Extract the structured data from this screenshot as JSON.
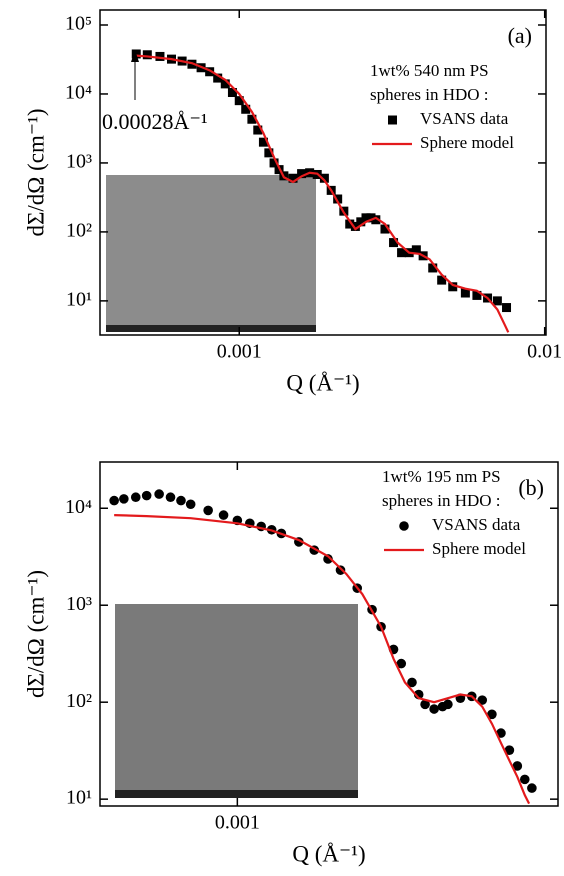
{
  "chart_data": [
    {
      "type": "line",
      "panel_label": "(a)",
      "y_label": "dΣ/dΩ (cm⁻¹)",
      "x_label": "Q (Å⁻¹)",
      "notes": [
        "1wt% 540 nm PS",
        "spheres in HDO :"
      ],
      "arrow_label": "0.00028Å⁻¹",
      "log_x": true,
      "log_y": true,
      "legend": "upper right",
      "xlim": [
        0.00035,
        0.0101
      ],
      "xticks": [
        0.001,
        0.01
      ],
      "ylim": [
        3.2,
        165000
      ],
      "yticks": [
        {
          "value": 10,
          "label": "10¹"
        },
        {
          "value": 100,
          "label": "10²"
        },
        {
          "value": 1000,
          "label": "10³"
        },
        {
          "value": 10000,
          "label": "10⁴"
        },
        {
          "value": 100000,
          "label": "10⁵"
        }
      ],
      "series": [
        {
          "name": "VSANS data",
          "color": "#000000",
          "marker": "square",
          "x": [
            0.00046,
            0.0005,
            0.00055,
            0.0006,
            0.00065,
            0.0007,
            0.00075,
            0.0008,
            0.00085,
            0.0009,
            0.00095,
            0.001,
            0.00105,
            0.0011,
            0.00115,
            0.0012,
            0.00125,
            0.0013,
            0.00135,
            0.0014,
            0.0015,
            0.0016,
            0.0017,
            0.0018,
            0.0019,
            0.002,
            0.0021,
            0.0022,
            0.0023,
            0.0024,
            0.0025,
            0.0026,
            0.0027,
            0.0028,
            0.003,
            0.0032,
            0.0034,
            0.0036,
            0.0038,
            0.004,
            0.0043,
            0.0046,
            0.005,
            0.0055,
            0.006,
            0.0065,
            0.007,
            0.0075
          ],
          "values": [
            38000,
            37000,
            35000,
            32000,
            30000,
            27000,
            24000,
            21000,
            17000,
            14000,
            10500,
            8000,
            6000,
            4300,
            3000,
            2000,
            1400,
            1000,
            800,
            650,
            600,
            700,
            720,
            680,
            600,
            400,
            300,
            200,
            130,
            120,
            140,
            160,
            160,
            150,
            110,
            70,
            50,
            50,
            55,
            45,
            30,
            20,
            16,
            13,
            12,
            11,
            10,
            8
          ]
        },
        {
          "name": "Sphere model",
          "color": "#e31a1c",
          "marker": "line",
          "x": [
            0.00046,
            0.0005,
            0.0006,
            0.0007,
            0.0008,
            0.0009,
            0.001,
            0.0011,
            0.0012,
            0.0013,
            0.0014,
            0.0015,
            0.0016,
            0.0017,
            0.0018,
            0.0019,
            0.002,
            0.0022,
            0.0024,
            0.0026,
            0.0028,
            0.003,
            0.0033,
            0.0036,
            0.0039,
            0.0042,
            0.0046,
            0.005,
            0.0055,
            0.006,
            0.0065,
            0.007,
            0.0074,
            0.0076
          ],
          "values": [
            36000,
            35000,
            32000,
            28000,
            22000,
            16000,
            10000,
            5500,
            2700,
            1200,
            620,
            530,
            640,
            720,
            700,
            560,
            400,
            190,
            110,
            140,
            160,
            130,
            70,
            50,
            48,
            40,
            24,
            17,
            15,
            14,
            11,
            7.5,
            4.5,
            3.5
          ]
        }
      ]
    },
    {
      "type": "line",
      "panel_label": "(b)",
      "y_label": "dΣ/dΩ (cm⁻¹)",
      "x_label": "Q (Å⁻¹)",
      "notes": [
        "1wt% 195 nm PS",
        "spheres in HDO :"
      ],
      "log_x": true,
      "log_y": true,
      "legend": "upper right",
      "xlim": [
        0.00035,
        0.0116
      ],
      "xticks": [
        0.001
      ],
      "ylim": [
        8.5,
        30000
      ],
      "yticks": [
        {
          "value": 10,
          "label": "10¹"
        },
        {
          "value": 100,
          "label": "10²"
        },
        {
          "value": 1000,
          "label": "10³"
        },
        {
          "value": 10000,
          "label": "10⁴"
        }
      ],
      "series": [
        {
          "name": "VSANS data",
          "color": "#000000",
          "marker": "circle",
          "x": [
            0.00039,
            0.00042,
            0.00046,
            0.0005,
            0.00055,
            0.0006,
            0.00065,
            0.0007,
            0.0008,
            0.0009,
            0.001,
            0.0011,
            0.0012,
            0.0013,
            0.0014,
            0.0016,
            0.0018,
            0.002,
            0.0022,
            0.0025,
            0.0028,
            0.003,
            0.0033,
            0.0035,
            0.0038,
            0.004,
            0.0042,
            0.0045,
            0.0048,
            0.005,
            0.0055,
            0.006,
            0.0065,
            0.007,
            0.0075,
            0.008,
            0.0085,
            0.009,
            0.0095
          ],
          "values": [
            12000,
            12500,
            13000,
            13500,
            14000,
            13000,
            12000,
            11000,
            9500,
            8500,
            7500,
            7000,
            6500,
            6000,
            5500,
            4500,
            3700,
            3000,
            2300,
            1500,
            900,
            600,
            350,
            250,
            160,
            120,
            95,
            85,
            90,
            95,
            110,
            115,
            105,
            75,
            48,
            32,
            22,
            16,
            13
          ]
        },
        {
          "name": "Sphere model",
          "color": "#e31a1c",
          "marker": "line",
          "x": [
            0.00039,
            0.0005,
            0.0007,
            0.001,
            0.0013,
            0.0016,
            0.002,
            0.0023,
            0.0026,
            0.003,
            0.0033,
            0.0036,
            0.004,
            0.0045,
            0.005,
            0.0055,
            0.006,
            0.0065,
            0.007,
            0.0075,
            0.008,
            0.0085,
            0.009,
            0.0093
          ],
          "values": [
            8500,
            8300,
            7900,
            7000,
            5900,
            4700,
            3200,
            2100,
            1300,
            600,
            280,
            160,
            110,
            100,
            110,
            120,
            115,
            90,
            60,
            38,
            25,
            17,
            11,
            9
          ]
        }
      ]
    }
  ]
}
